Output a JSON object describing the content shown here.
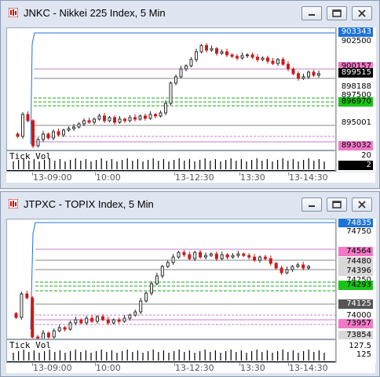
{
  "windows": [
    {
      "title": "JNKC - Nikkei 225 Index, 5 Min",
      "sub_label": "Tick Vol",
      "sub_scale": [
        "20",
        "2"
      ],
      "time_labels": [
        "13-09:00",
        "10:00",
        "13-12:30",
        "13:30",
        "13-14:30"
      ],
      "price_labels": [
        {
          "text": "903343",
          "bg": "#1e73d8",
          "fg": "#ffffff"
        },
        {
          "text": "902500",
          "bg": "#ffffff",
          "fg": "#000000"
        },
        {
          "text": "900157",
          "bg": "#f07ac8",
          "fg": "#000000"
        },
        {
          "text": "899515",
          "bg": "#000000",
          "fg": "#ffffff"
        },
        {
          "text": "898188",
          "bg": "#ffffff",
          "fg": "#000000"
        },
        {
          "text": "897500",
          "bg": "#ffffff",
          "fg": "#000000"
        },
        {
          "text": "896970",
          "bg": "#18c418",
          "fg": "#000000"
        },
        {
          "text": "895001",
          "bg": "#ffffff",
          "fg": "#000000"
        },
        {
          "text": "893032",
          "bg": "#f07ac8",
          "fg": "#000000"
        }
      ]
    },
    {
      "title": "JTPXC - TOPIX Index, 5 Min",
      "sub_label": "Tick Vol",
      "sub_scale": [
        "127.5",
        "125"
      ],
      "time_labels": [
        "13-09:00",
        "10:00",
        "13-12:30",
        "13:30",
        "13-14:30"
      ],
      "price_labels": [
        {
          "text": "74835",
          "bg": "#1e73d8",
          "fg": "#ffffff"
        },
        {
          "text": "74750",
          "bg": "#ffffff",
          "fg": "#000000"
        },
        {
          "text": "74564",
          "bg": "#f07ac8",
          "fg": "#000000"
        },
        {
          "text": "74480",
          "bg": "#d8d8d8",
          "fg": "#000000"
        },
        {
          "text": "74396",
          "bg": "#d8d8d8",
          "fg": "#000000"
        },
        {
          "text": "74250",
          "bg": "#ffffff",
          "fg": "#000000"
        },
        {
          "text": "74293",
          "bg": "#18c418",
          "fg": "#000000"
        },
        {
          "text": "74125",
          "bg": "#555555",
          "fg": "#ffffff"
        },
        {
          "text": "74000",
          "bg": "#ffffff",
          "fg": "#000000"
        },
        {
          "text": "73957",
          "bg": "#f07ac8",
          "fg": "#000000"
        },
        {
          "text": "73854",
          "bg": "#d8d8d8",
          "fg": "#000000"
        }
      ]
    }
  ],
  "colors": {
    "up": "#2b2b2b",
    "down": "#cc1a1a",
    "pivot": "#c77ccf",
    "support": "#18a818",
    "high_line": "#1e73d8"
  },
  "icons": {
    "app": "chart-app-icon",
    "minimize": "minimize-icon",
    "restore": "restore-icon",
    "close": "close-icon"
  }
}
